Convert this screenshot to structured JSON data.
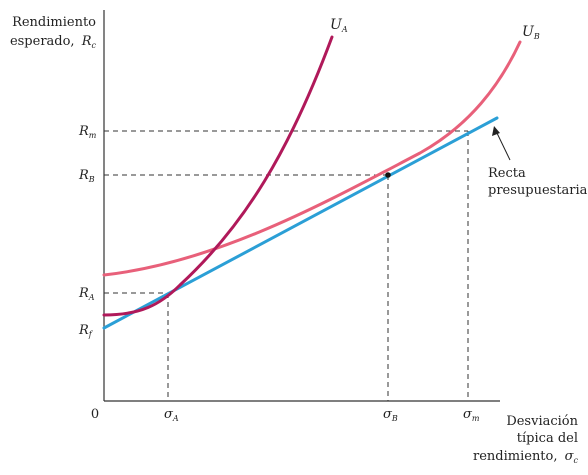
{
  "axes": {
    "y_title_line1": "Rendimiento",
    "y_title_line2": "esperado,",
    "y_title_symbol": "R",
    "y_title_sub": "c",
    "x_title_line1": "Desviación",
    "x_title_line2": "típica del",
    "x_title_line3": "rendimiento,",
    "x_title_symbol": "σ",
    "x_title_sub": "c",
    "origin": "0"
  },
  "y_ticks": {
    "rm": {
      "main": "R",
      "sub": "m"
    },
    "rb": {
      "main": "R",
      "sub": "B"
    },
    "ra": {
      "main": "R",
      "sub": "A"
    },
    "rf": {
      "main": "R",
      "sub": "f"
    }
  },
  "x_ticks": {
    "sa": {
      "main": "σ",
      "sub": "A"
    },
    "sb": {
      "main": "σ",
      "sub": "B"
    },
    "sm": {
      "main": "σ",
      "sub": "m"
    }
  },
  "curves": {
    "ua": {
      "main": "U",
      "sub": "A",
      "color": "#b0195a"
    },
    "ub": {
      "main": "U",
      "sub": "B",
      "color": "#e8607a"
    },
    "budget_color": "#2b9fd6"
  },
  "budget_label_line1": "Recta",
  "budget_label_line2": "presupuestaria"
}
